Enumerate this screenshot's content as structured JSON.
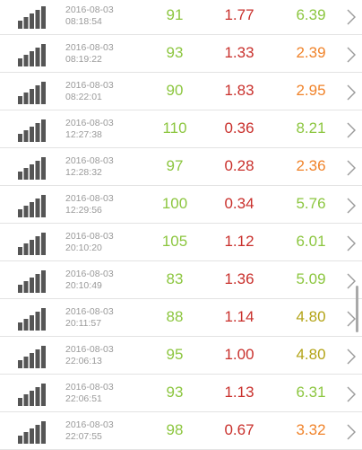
{
  "colors": {
    "green": "#8cc63f",
    "red": "#c9302c",
    "orange": "#f0832a",
    "olive": "#b3a316",
    "time_gray": "#9a9a9a",
    "signal_gray": "#555555",
    "chevron_gray": "#9a9a9a"
  },
  "rows": [
    {
      "icon": "signal-bars-icon",
      "date": "2016-08-03",
      "time": "08:18:54",
      "v1": "91",
      "v2": "1.77",
      "v3": "6.39",
      "c1": "green",
      "c2": "red",
      "c3": "green"
    },
    {
      "icon": "signal-bars-icon",
      "date": "2016-08-03",
      "time": "08:19:22",
      "v1": "93",
      "v2": "1.33",
      "v3": "2.39",
      "c1": "green",
      "c2": "red",
      "c3": "orange"
    },
    {
      "icon": "signal-bars-icon",
      "date": "2016-08-03",
      "time": "08:22:01",
      "v1": "90",
      "v2": "1.83",
      "v3": "2.95",
      "c1": "green",
      "c2": "red",
      "c3": "orange"
    },
    {
      "icon": "signal-bars-icon",
      "date": "2016-08-03",
      "time": "12:27:38",
      "v1": "110",
      "v2": "0.36",
      "v3": "8.21",
      "c1": "green",
      "c2": "red",
      "c3": "green"
    },
    {
      "icon": "signal-bars-icon",
      "date": "2016-08-03",
      "time": "12:28:32",
      "v1": "97",
      "v2": "0.28",
      "v3": "2.36",
      "c1": "green",
      "c2": "red",
      "c3": "orange"
    },
    {
      "icon": "signal-bars-icon",
      "date": "2016-08-03",
      "time": "12:29:56",
      "v1": "100",
      "v2": "0.34",
      "v3": "5.76",
      "c1": "green",
      "c2": "red",
      "c3": "green"
    },
    {
      "icon": "signal-bars-icon",
      "date": "2016-08-03",
      "time": "20:10:20",
      "v1": "105",
      "v2": "1.12",
      "v3": "6.01",
      "c1": "green",
      "c2": "red",
      "c3": "green"
    },
    {
      "icon": "signal-bars-icon",
      "date": "2016-08-03",
      "time": "20:10:49",
      "v1": "83",
      "v2": "1.36",
      "v3": "5.09",
      "c1": "green",
      "c2": "red",
      "c3": "green"
    },
    {
      "icon": "signal-bars-icon",
      "date": "2016-08-03",
      "time": "20:11:57",
      "v1": "88",
      "v2": "1.14",
      "v3": "4.80",
      "c1": "green",
      "c2": "red",
      "c3": "olive"
    },
    {
      "icon": "signal-bars-icon",
      "date": "2016-08-03",
      "time": "22:06:13",
      "v1": "95",
      "v2": "1.00",
      "v3": "4.80",
      "c1": "green",
      "c2": "red",
      "c3": "olive"
    },
    {
      "icon": "signal-bars-icon",
      "date": "2016-08-03",
      "time": "22:06:51",
      "v1": "93",
      "v2": "1.13",
      "v3": "6.31",
      "c1": "green",
      "c2": "red",
      "c3": "green"
    },
    {
      "icon": "signal-bars-icon",
      "date": "2016-08-03",
      "time": "22:07:55",
      "v1": "98",
      "v2": "0.67",
      "v3": "3.32",
      "c1": "green",
      "c2": "red",
      "c3": "orange"
    }
  ]
}
